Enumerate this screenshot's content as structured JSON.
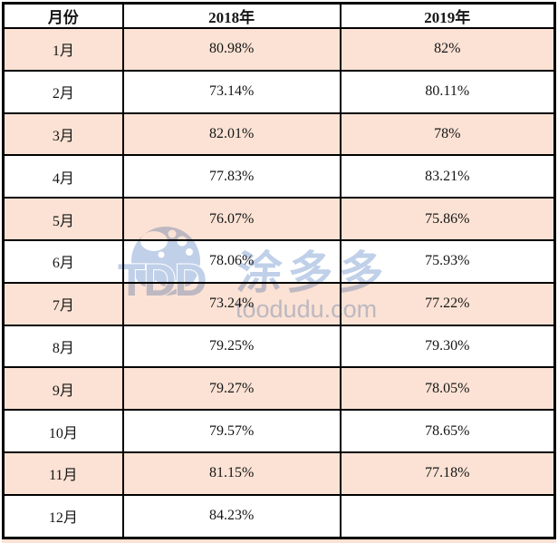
{
  "colors": {
    "row_highlight": "#fbe2d4",
    "table_border": "#000000",
    "cell_text": "#151515",
    "watermark_blue": "#b9cbe7",
    "background": "#ffffff"
  },
  "table": {
    "headers": [
      "月份",
      "2018年",
      "2019年"
    ],
    "rows": [
      {
        "month": "1月",
        "y2018": "80.98%",
        "y2019": "82%",
        "highlighted": true
      },
      {
        "month": "2月",
        "y2018": "73.14%",
        "y2019": "80.11%",
        "highlighted": false
      },
      {
        "month": "3月",
        "y2018": "82.01%",
        "y2019": "78%",
        "highlighted": true
      },
      {
        "month": "4月",
        "y2018": "77.83%",
        "y2019": "83.21%",
        "highlighted": false
      },
      {
        "month": "5月",
        "y2018": "76.07%",
        "y2019": "75.86%",
        "highlighted": true
      },
      {
        "month": "6月",
        "y2018": "78.06%",
        "y2019": "75.93%",
        "highlighted": false
      },
      {
        "month": "7月",
        "y2018": "73.24%",
        "y2019": "77.22%",
        "highlighted": true
      },
      {
        "month": "8月",
        "y2018": "79.25%",
        "y2019": "79.30%",
        "highlighted": false
      },
      {
        "month": "9月",
        "y2018": "79.27%",
        "y2019": "78.05%",
        "highlighted": true
      },
      {
        "month": "10月",
        "y2018": "79.57%",
        "y2019": "78.65%",
        "highlighted": false
      },
      {
        "month": "11月",
        "y2018": "81.15%",
        "y2019": "77.18%",
        "highlighted": true
      },
      {
        "month": "12月",
        "y2018": "84.23%",
        "y2019": "",
        "highlighted": false
      }
    ]
  },
  "watermark": {
    "logo_text": "TDD",
    "brand_cn": "涂多多",
    "brand_url": "toodudu.com"
  },
  "chart_data": {
    "type": "table",
    "title": "",
    "categories": [
      "1月",
      "2月",
      "3月",
      "4月",
      "5月",
      "6月",
      "7月",
      "8月",
      "9月",
      "10月",
      "11月",
      "12月"
    ],
    "series": [
      {
        "name": "2018年",
        "values": [
          80.98,
          73.14,
          82.01,
          77.83,
          76.07,
          78.06,
          73.24,
          79.25,
          79.27,
          79.57,
          81.15,
          84.23
        ]
      },
      {
        "name": "2019年",
        "values": [
          82,
          80.11,
          78,
          83.21,
          75.86,
          75.93,
          77.22,
          79.3,
          78.05,
          78.65,
          77.18,
          null
        ]
      }
    ],
    "unit": "%",
    "layout": {
      "header_row": true,
      "alternating_row_fill": "#fbe2d4",
      "grid": "solid-black"
    }
  }
}
